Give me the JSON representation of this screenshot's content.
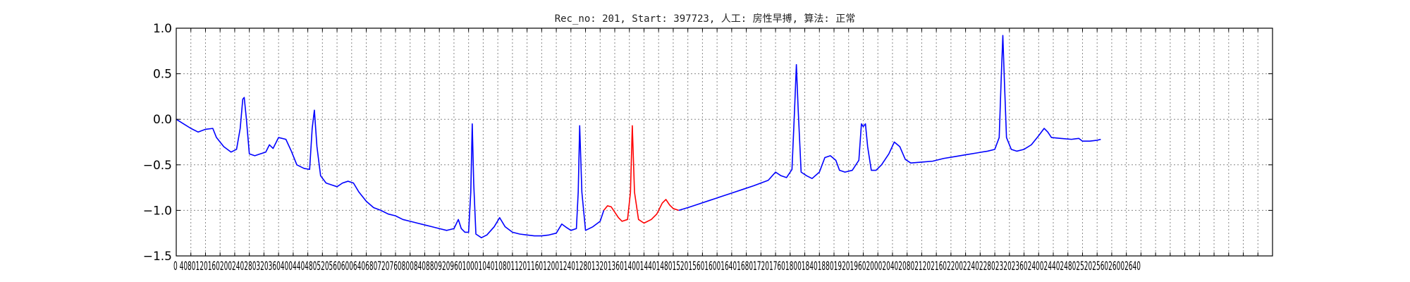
{
  "chart_data": {
    "type": "line",
    "title": "Rec_no: 201, Start: 397723, 人工: 房性早搏, 算法: 正常",
    "xlabel": "",
    "ylabel": "",
    "xlim": [
      0,
      3000
    ],
    "ylim": [
      -1.5,
      1.0
    ],
    "grid": true,
    "x_tick_step": 40,
    "y_ticks": [
      {
        "value": 1.0,
        "label": "1.0"
      },
      {
        "value": 0.5,
        "label": "0.5"
      },
      {
        "value": 0.0,
        "label": "0.0"
      },
      {
        "value": -0.5,
        "label": "−0.5"
      },
      {
        "value": -1.0,
        "label": "−1.0"
      },
      {
        "value": -1.5,
        "label": "−1.5"
      }
    ],
    "x_tick_labels_text": "0 4080120160200240280320360400440480520560600640680720760800840880920960100010401080112011601200124012801320136014001440148015201560160016401680172017601800184018801920196020002040208021202160220022402280232023602400244024802520256026002640",
    "series": [
      {
        "color": "#0000ff",
        "points": [
          [
            0,
            0.0
          ],
          [
            20,
            -0.05
          ],
          [
            40,
            -0.1
          ],
          [
            60,
            -0.14
          ],
          [
            80,
            -0.11
          ],
          [
            100,
            -0.1
          ],
          [
            110,
            -0.2
          ],
          [
            130,
            -0.3
          ],
          [
            150,
            -0.36
          ],
          [
            165,
            -0.33
          ],
          [
            175,
            -0.1
          ],
          [
            182,
            0.22
          ],
          [
            186,
            0.24
          ],
          [
            192,
            0.0
          ],
          [
            200,
            -0.38
          ],
          [
            215,
            -0.4
          ],
          [
            230,
            -0.38
          ],
          [
            245,
            -0.36
          ],
          [
            255,
            -0.28
          ],
          [
            265,
            -0.32
          ],
          [
            280,
            -0.2
          ],
          [
            300,
            -0.22
          ],
          [
            315,
            -0.35
          ],
          [
            330,
            -0.5
          ],
          [
            350,
            -0.54
          ],
          [
            365,
            -0.55
          ],
          [
            372,
            -0.1
          ],
          [
            378,
            0.1
          ],
          [
            385,
            -0.3
          ],
          [
            395,
            -0.62
          ],
          [
            410,
            -0.7
          ],
          [
            425,
            -0.72
          ],
          [
            440,
            -0.74
          ],
          [
            455,
            -0.7
          ],
          [
            470,
            -0.68
          ],
          [
            485,
            -0.7
          ],
          [
            500,
            -0.8
          ],
          [
            520,
            -0.9
          ],
          [
            540,
            -0.97
          ],
          [
            560,
            -1.0
          ],
          [
            580,
            -1.04
          ],
          [
            600,
            -1.06
          ],
          [
            620,
            -1.1
          ],
          [
            640,
            -1.12
          ],
          [
            660,
            -1.14
          ],
          [
            680,
            -1.16
          ],
          [
            700,
            -1.18
          ],
          [
            720,
            -1.2
          ],
          [
            740,
            -1.22
          ],
          [
            760,
            -1.2
          ],
          [
            772,
            -1.1
          ],
          [
            780,
            -1.2
          ],
          [
            790,
            -1.24
          ],
          [
            800,
            -1.24
          ],
          [
            806,
            -0.8
          ],
          [
            810,
            -0.05
          ],
          [
            814,
            -0.7
          ],
          [
            820,
            -1.26
          ],
          [
            835,
            -1.3
          ],
          [
            850,
            -1.27
          ],
          [
            870,
            -1.18
          ],
          [
            885,
            -1.08
          ],
          [
            900,
            -1.18
          ],
          [
            920,
            -1.24
          ],
          [
            940,
            -1.26
          ],
          [
            960,
            -1.27
          ],
          [
            980,
            -1.28
          ],
          [
            1000,
            -1.28
          ],
          [
            1020,
            -1.27
          ],
          [
            1040,
            -1.25
          ],
          [
            1055,
            -1.15
          ],
          [
            1065,
            -1.18
          ],
          [
            1080,
            -1.22
          ],
          [
            1095,
            -1.2
          ],
          [
            1100,
            -0.8
          ],
          [
            1104,
            -0.07
          ],
          [
            1110,
            -0.8
          ],
          [
            1120,
            -1.22
          ],
          [
            1140,
            -1.18
          ],
          [
            1160,
            -1.12
          ],
          [
            1170,
            -1.0
          ]
        ]
      },
      {
        "color": "#ff0000",
        "points": [
          [
            1170,
            -1.0
          ],
          [
            1180,
            -0.95
          ],
          [
            1190,
            -0.96
          ],
          [
            1200,
            -1.02
          ],
          [
            1210,
            -1.08
          ],
          [
            1220,
            -1.12
          ],
          [
            1235,
            -1.1
          ],
          [
            1243,
            -0.8
          ],
          [
            1248,
            -0.07
          ],
          [
            1254,
            -0.8
          ],
          [
            1265,
            -1.1
          ],
          [
            1280,
            -1.14
          ],
          [
            1300,
            -1.1
          ],
          [
            1315,
            -1.04
          ],
          [
            1330,
            -0.92
          ],
          [
            1340,
            -0.88
          ],
          [
            1350,
            -0.94
          ],
          [
            1360,
            -0.98
          ],
          [
            1375,
            -1.0
          ]
        ]
      },
      {
        "color": "#0000ff",
        "points": [
          [
            1375,
            -1.0
          ],
          [
            1400,
            -0.97
          ],
          [
            1430,
            -0.93
          ],
          [
            1460,
            -0.89
          ],
          [
            1490,
            -0.85
          ],
          [
            1520,
            -0.81
          ],
          [
            1550,
            -0.77
          ],
          [
            1580,
            -0.73
          ],
          [
            1600,
            -0.7
          ],
          [
            1620,
            -0.67
          ],
          [
            1640,
            -0.58
          ],
          [
            1655,
            -0.62
          ],
          [
            1670,
            -0.64
          ],
          [
            1685,
            -0.55
          ],
          [
            1692,
            0.1
          ],
          [
            1697,
            0.6
          ],
          [
            1702,
            0.1
          ],
          [
            1710,
            -0.58
          ],
          [
            1725,
            -0.62
          ],
          [
            1740,
            -0.65
          ],
          [
            1760,
            -0.58
          ],
          [
            1775,
            -0.42
          ],
          [
            1790,
            -0.4
          ],
          [
            1805,
            -0.45
          ],
          [
            1815,
            -0.56
          ],
          [
            1830,
            -0.58
          ],
          [
            1850,
            -0.56
          ],
          [
            1868,
            -0.45
          ],
          [
            1875,
            -0.05
          ],
          [
            1880,
            -0.08
          ],
          [
            1886,
            -0.05
          ],
          [
            1892,
            -0.3
          ],
          [
            1902,
            -0.56
          ],
          [
            1915,
            -0.56
          ],
          [
            1930,
            -0.5
          ],
          [
            1950,
            -0.38
          ],
          [
            1965,
            -0.25
          ],
          [
            1980,
            -0.3
          ],
          [
            1995,
            -0.44
          ],
          [
            2010,
            -0.48
          ],
          [
            2040,
            -0.47
          ],
          [
            2070,
            -0.46
          ],
          [
            2100,
            -0.43
          ],
          [
            2130,
            -0.41
          ],
          [
            2160,
            -0.39
          ],
          [
            2190,
            -0.37
          ],
          [
            2220,
            -0.35
          ],
          [
            2240,
            -0.33
          ],
          [
            2252,
            -0.2
          ],
          [
            2258,
            0.5
          ],
          [
            2262,
            0.92
          ],
          [
            2266,
            0.45
          ],
          [
            2272,
            -0.2
          ],
          [
            2285,
            -0.33
          ],
          [
            2300,
            -0.35
          ],
          [
            2320,
            -0.33
          ],
          [
            2340,
            -0.28
          ],
          [
            2360,
            -0.18
          ],
          [
            2375,
            -0.1
          ],
          [
            2385,
            -0.14
          ],
          [
            2395,
            -0.2
          ],
          [
            2420,
            -0.21
          ],
          [
            2450,
            -0.22
          ],
          [
            2470,
            -0.21
          ],
          [
            2480,
            -0.24
          ],
          [
            2500,
            -0.24
          ],
          [
            2520,
            -0.23
          ],
          [
            2530,
            -0.22
          ]
        ]
      }
    ]
  }
}
